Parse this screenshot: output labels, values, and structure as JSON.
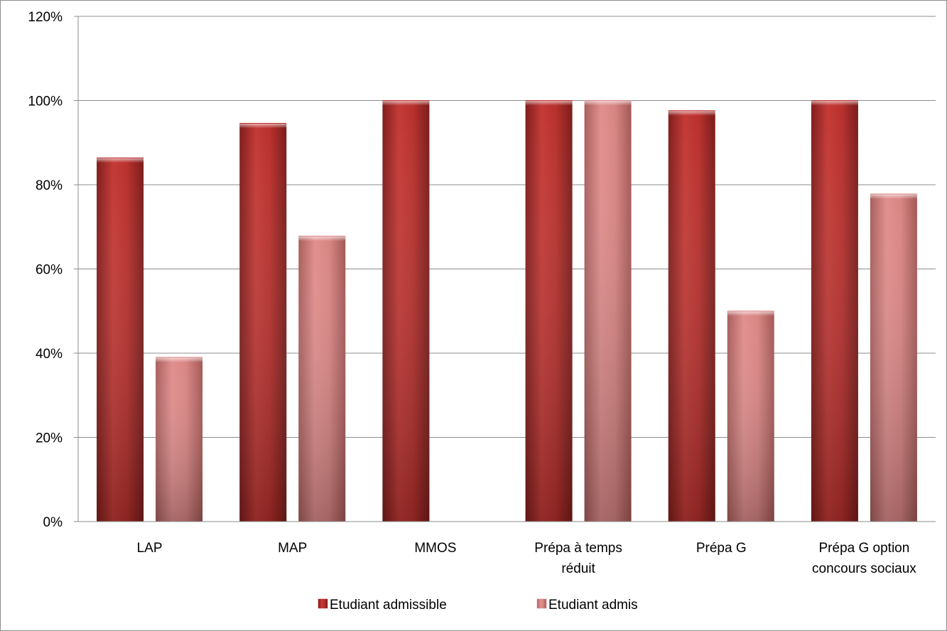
{
  "chart_data": {
    "type": "bar",
    "title": "",
    "xlabel": "",
    "ylabel": "",
    "categories": [
      [
        "LAP"
      ],
      [
        "MAP"
      ],
      [
        "MMOS"
      ],
      [
        "Prépa à temps",
        "réduit"
      ],
      [
        "Prépa G"
      ],
      [
        "Prépa G option",
        "concours sociaux"
      ]
    ],
    "series": [
      {
        "name": "Etudiant admissible",
        "values": [
          86.4,
          94.6,
          100,
          100,
          97.6,
          100
        ],
        "color": "#c0312e"
      },
      {
        "name": "Etudiant admis",
        "values": [
          39,
          67.8,
          0,
          100,
          50,
          77.8
        ],
        "color": "#d98584"
      }
    ],
    "y_tick_labels": [
      "0%",
      "20%",
      "40%",
      "60%",
      "80%",
      "100%",
      "120%"
    ],
    "ylim": [
      0,
      120
    ],
    "y_tick_step": 20,
    "grid": true,
    "legend_position": "bottom"
  }
}
